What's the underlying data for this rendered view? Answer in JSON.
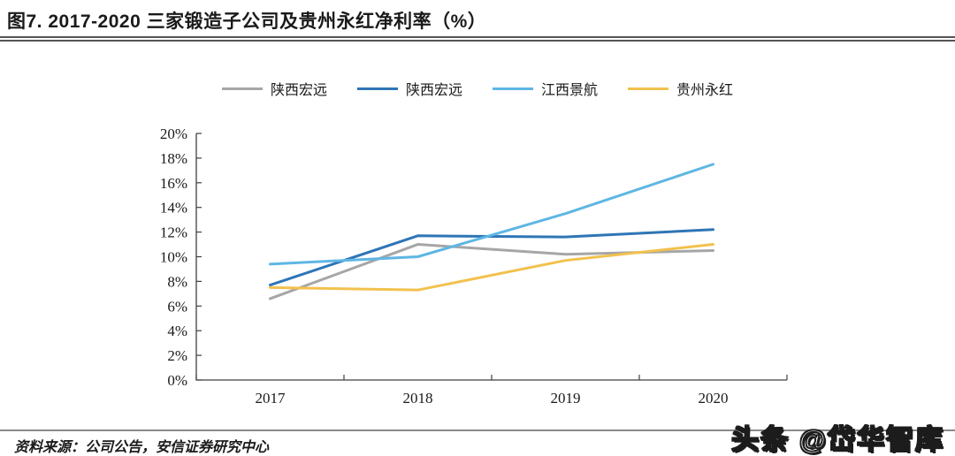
{
  "header": {
    "title": "图7. 2017-2020 三家锻造子公司及贵州永红净利率（%）"
  },
  "footer": {
    "source": "资料来源：公司公告，安信证券研究中心",
    "watermark": "头条 @岱华智库"
  },
  "chart_data": {
    "type": "line",
    "title": "2017-2020 三家锻造子公司及贵州永红净利率（%）",
    "categories": [
      "2017",
      "2018",
      "2019",
      "2020"
    ],
    "series": [
      {
        "name": "陕西宏远",
        "color": "#A6A6A6",
        "values": [
          6.6,
          11.0,
          10.2,
          10.5
        ]
      },
      {
        "name": "陕西宏远",
        "color": "#2E75B6",
        "values": [
          7.7,
          11.7,
          11.6,
          12.2
        ]
      },
      {
        "name": "江西景航",
        "color": "#5EB6E4",
        "values": [
          9.4,
          10.0,
          13.5,
          17.5
        ]
      },
      {
        "name": "贵州永红",
        "color": "#F2C14E",
        "values": [
          7.5,
          7.3,
          9.7,
          11.0
        ]
      }
    ],
    "xlabel": "",
    "ylabel": "",
    "ylim": [
      0,
      20
    ],
    "ytick_step": 2,
    "ytick_suffix": "%",
    "legend_position": "top",
    "grid": false,
    "axis_color": "#404040"
  }
}
